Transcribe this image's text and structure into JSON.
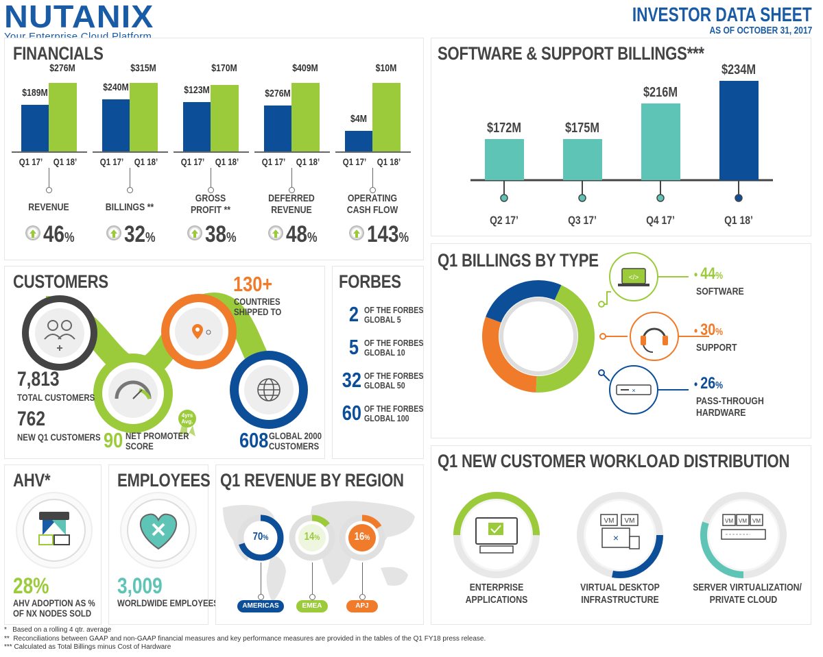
{
  "header": {
    "logo_text": "NUTANIX",
    "tagline": "Your Enterprise Cloud Platform",
    "sheet_title": "INVESTOR DATA SHEET",
    "as_of": "AS OF OCTOBER 31, 2017"
  },
  "colors": {
    "blue": "#0d4e99",
    "green": "#9bcb3b",
    "teal": "#5ec4b6",
    "orange": "#f07b2a",
    "gray": "#444444"
  },
  "financials": {
    "title": "FINANCIALS",
    "metrics": [
      {
        "name_lines": [
          "REVENUE"
        ],
        "q1_17": "$189M",
        "q1_18": "$276M",
        "v17": 189,
        "v18": 276,
        "growth": "46",
        "pct": "%"
      },
      {
        "name_lines": [
          "BILLINGS **"
        ],
        "q1_17": "$240M",
        "q1_18": "$315M",
        "v17": 240,
        "v18": 315,
        "growth": "32",
        "pct": "%"
      },
      {
        "name_lines": [
          "GROSS",
          "PROFIT **"
        ],
        "q1_17": "$123M",
        "q1_18": "$170M",
        "v17": 123,
        "v18": 170,
        "growth": "38",
        "pct": "%"
      },
      {
        "name_lines": [
          "DEFERRED",
          "REVENUE"
        ],
        "q1_17": "$276M",
        "q1_18": "$409M",
        "v17": 276,
        "v18": 409,
        "growth": "48",
        "pct": "%"
      },
      {
        "name_lines": [
          "OPERATING",
          "CASH FLOW"
        ],
        "q1_17": "$4M",
        "q1_18": "$10M",
        "v17": 4,
        "v18": 10,
        "growth": "143",
        "pct": "%"
      }
    ],
    "q17_label": "Q1 17’",
    "q18_label": "Q1 18’"
  },
  "chart_data": [
    {
      "type": "bar",
      "title": "SOFTWARE & SUPPORT BILLINGS***",
      "categories": [
        "Q2 17’",
        "Q3 17’",
        "Q4 17’",
        "Q1 18’"
      ],
      "values": [
        172,
        175,
        216,
        234
      ],
      "labels": [
        "$172M",
        "$175M",
        "$216M",
        "$234M"
      ],
      "colors": [
        "#5ec4b6",
        "#5ec4b6",
        "#5ec4b6",
        "#0d4e99"
      ]
    },
    {
      "type": "pie",
      "title": "Q1 BILLINGS BY TYPE",
      "categories": [
        "SOFTWARE",
        "SUPPORT",
        "PASS-THROUGH HARDWARE"
      ],
      "values": [
        44,
        30,
        26
      ],
      "colors": [
        "#9bcb3b",
        "#f07b2a",
        "#0d4e99"
      ]
    }
  ],
  "billings_by_type": {
    "title": "Q1 BILLINGS BY TYPE",
    "items": [
      {
        "pct": "44",
        "sym": "%",
        "lines": [
          "SOFTWARE"
        ],
        "color": "#9bcb3b",
        "icon": "laptop-code-icon"
      },
      {
        "pct": "30",
        "sym": "%",
        "lines": [
          "SUPPORT"
        ],
        "color": "#f07b2a",
        "icon": "headset-icon"
      },
      {
        "pct": "26",
        "sym": "%",
        "lines": [
          "PASS-THROUGH",
          "HARDWARE"
        ],
        "color": "#0d4e99",
        "icon": "server-appliance-icon"
      }
    ]
  },
  "customers": {
    "title": "CUSTOMERS",
    "total_value": "7,813",
    "total_label": "TOTAL CUSTOMERS",
    "new_value": "762",
    "new_label": "NEW Q1 CUSTOMERS",
    "nps_value": "90",
    "nps_label_1": "NET PROMOTER",
    "nps_label_2": "SCORE",
    "badge_1": "4yrs",
    "badge_2": "Avg.",
    "countries_value": "130+",
    "countries_label_1": "COUNTRIES",
    "countries_label_2": "SHIPPED TO",
    "g2000_value": "608",
    "g2000_label_1": "GLOBAL 2000",
    "g2000_label_2": "CUSTOMERS"
  },
  "forbes": {
    "title": "FORBES",
    "rows": [
      {
        "n": "2",
        "l1": "OF THE FORBES",
        "l2": "GLOBAL 5"
      },
      {
        "n": "5",
        "l1": "OF THE FORBES",
        "l2": "GLOBAL 10"
      },
      {
        "n": "32",
        "l1": "OF THE FORBES",
        "l2": "GLOBAL 50"
      },
      {
        "n": "60",
        "l1": "OF THE FORBES",
        "l2": "GLOBAL 100"
      }
    ]
  },
  "ahv": {
    "title": "AHV*",
    "value": "28%",
    "label_1": "AHV ADOPTION AS %",
    "label_2": "OF NX NODES SOLD"
  },
  "employees": {
    "title": "EMPLOYEES",
    "value": "3,009",
    "label": "WORLDWIDE EMPLOYEES"
  },
  "region": {
    "title": "Q1 REVENUE BY REGION",
    "items": [
      {
        "pct": "70",
        "sym": "%",
        "name": "AMERICAS",
        "value": 70,
        "color": "#0d4e99"
      },
      {
        "pct": "14",
        "sym": "%",
        "name": "EMEA",
        "value": 14,
        "color": "#9bcb3b"
      },
      {
        "pct": "16",
        "sym": "%",
        "name": "APJ",
        "value": 16,
        "color": "#f07b2a"
      }
    ]
  },
  "workload": {
    "title": "Q1 NEW CUSTOMER WORKLOAD DISTRIBUTION",
    "items": [
      {
        "l1": "ENTERPRISE",
        "l2": "APPLICATIONS",
        "color": "#9bcb3b"
      },
      {
        "l1": "VIRTUAL DESKTOP",
        "l2": "INFRASTRUCTURE",
        "color": "#0d4e99"
      },
      {
        "l1": "SERVER VIRTUALIZATION/",
        "l2": "PRIVATE CLOUD",
        "color": "#5ec4b6"
      }
    ],
    "vm": "VM"
  },
  "footnotes": [
    "*   Based on a rolling 4 qtr. average",
    "**  Reconciliations between GAAP and non-GAAP financial measures and key performance measures are provided in the tables of the Q1 FY18 press release.",
    "*** Calculated as Total Billings minus Cost of Hardware"
  ]
}
